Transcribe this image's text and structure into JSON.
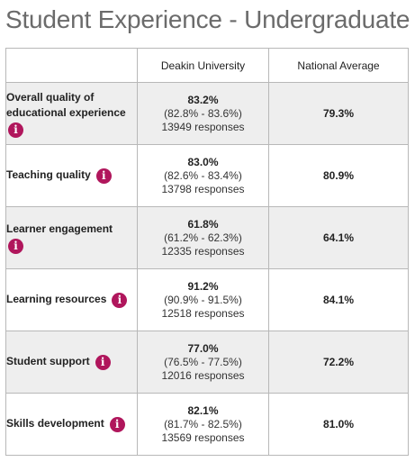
{
  "title": "Student Experience - Undergraduate",
  "table": {
    "headers": [
      "",
      "Deakin University",
      "National Average"
    ],
    "rows": [
      {
        "metric": "Overall quality of educational experience",
        "metric_lines": [
          "Overall quality of",
          "educational experience"
        ],
        "uni_pct": "83.2%",
        "uni_range": "(82.8% - 83.6%)",
        "uni_responses": "13949 responses",
        "national": "79.3%",
        "info_icon": "info-icon"
      },
      {
        "metric": "Teaching quality",
        "uni_pct": "83.0%",
        "uni_range": "(82.6% - 83.4%)",
        "uni_responses": "13798 responses",
        "national": "80.9%",
        "info_icon": "info-icon"
      },
      {
        "metric": "Learner engagement",
        "uni_pct": "61.8%",
        "uni_range": "(61.2% - 62.3%)",
        "uni_responses": "12335 responses",
        "national": "64.1%",
        "info_icon": "info-icon"
      },
      {
        "metric": "Learning resources",
        "uni_pct": "91.2%",
        "uni_range": "(90.9% - 91.5%)",
        "uni_responses": "12518 responses",
        "national": "84.1%",
        "info_icon": "info-icon"
      },
      {
        "metric": "Student support",
        "uni_pct": "77.0%",
        "uni_range": "(76.5% - 77.5%)",
        "uni_responses": "12016 responses",
        "national": "72.2%",
        "info_icon": "info-icon"
      },
      {
        "metric": "Skills development",
        "uni_pct": "82.1%",
        "uni_range": "(81.7% - 82.5%)",
        "uni_responses": "13569 responses",
        "national": "81.0%",
        "info_icon": "info-icon"
      }
    ],
    "info_glyph": "i",
    "colors": {
      "info_icon": "#b0165c",
      "shaded_row": "#eeeeee",
      "title": "#6b6b6b",
      "border": "#b8b8b8"
    }
  }
}
